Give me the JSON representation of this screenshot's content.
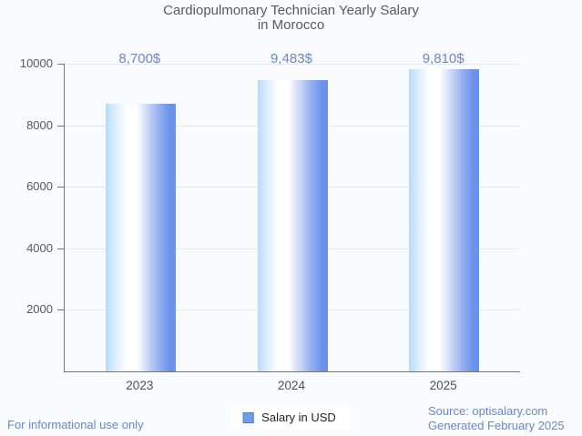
{
  "title": {
    "line1": "Cardiopulmonary Technician Yearly Salary",
    "line2": "in Morocco"
  },
  "chart_data": {
    "type": "bar",
    "title": "Cardiopulmonary Technician Yearly Salary in Morocco",
    "categories": [
      "2023",
      "2024",
      "2025"
    ],
    "values": [
      8700,
      9483,
      9810
    ],
    "value_labels": [
      "8,700$",
      "9,483$",
      "9,810$"
    ],
    "series": [
      {
        "name": "Salary in USD",
        "values": [
          8700,
          9483,
          9810
        ]
      }
    ],
    "xlabel": "",
    "ylabel": "",
    "ylim": [
      0,
      10000
    ],
    "yticks": [
      2000,
      4000,
      6000,
      8000,
      10000
    ],
    "grid": true,
    "legend_position": "bottom-center"
  },
  "legend": {
    "label": "Salary in USD"
  },
  "footer": {
    "disclaimer": "For informational use only",
    "source": "Source: optisalary.com",
    "generated": "Generated February 2025"
  },
  "colors": {
    "background": "#fafbfe",
    "title_text": "#58595b",
    "accent_text": "#6787d8",
    "axis_line": "#757575",
    "gridline": "#e5e7ea",
    "bar_left": "#b5dbfd",
    "bar_mid": "#ffffff",
    "bar_right": "#6b92ea",
    "legend_swatch": "#6d9ee9"
  }
}
